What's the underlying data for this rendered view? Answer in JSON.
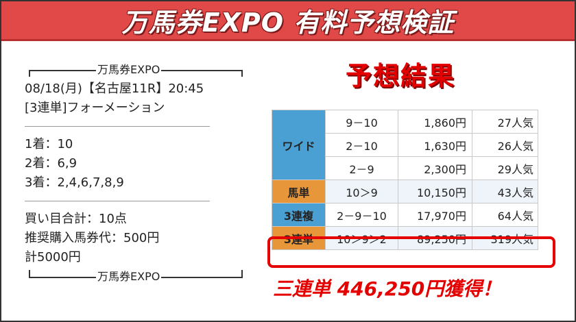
{
  "banner": {
    "title": "万馬券EXPO 有料予想検証"
  },
  "ticket": {
    "brand": "万馬券EXPO",
    "race_line": "08/18(月)【名古屋11R】20:45",
    "bet_type_line": "[3連単]フォーメーション",
    "first": "1着：10",
    "second": "2着：6,9",
    "third": "3着：2,4,6,7,8,9",
    "total_points": "買い目合計：10点",
    "recommended": "推奨購入馬券代：500円",
    "total_cost": "計5000円"
  },
  "result": {
    "title": "予想結果",
    "rows": [
      {
        "bet": "ワイド",
        "combo": "9－10",
        "pay": "1,860円",
        "pop": "27人気"
      },
      {
        "bet": "",
        "combo": "2－10",
        "pay": "1,630円",
        "pop": "26人気"
      },
      {
        "bet": "",
        "combo": "2－9",
        "pay": "2,300円",
        "pop": "29人気"
      },
      {
        "bet": "馬単",
        "combo": "10＞9",
        "pay": "10,150円",
        "pop": "43人気"
      },
      {
        "bet": "3連複",
        "combo": "2－9－10",
        "pay": "17,970円",
        "pop": "64人気"
      },
      {
        "bet": "3連単",
        "combo": "10＞9＞2",
        "pay": "89,250円",
        "pop": "319人気"
      }
    ],
    "win_text": "三連単 446,250円獲得！"
  },
  "colors": {
    "banner": "#e14848",
    "accent": "#e40000",
    "blue": "#4a9fd3",
    "orange": "#e8963a"
  }
}
